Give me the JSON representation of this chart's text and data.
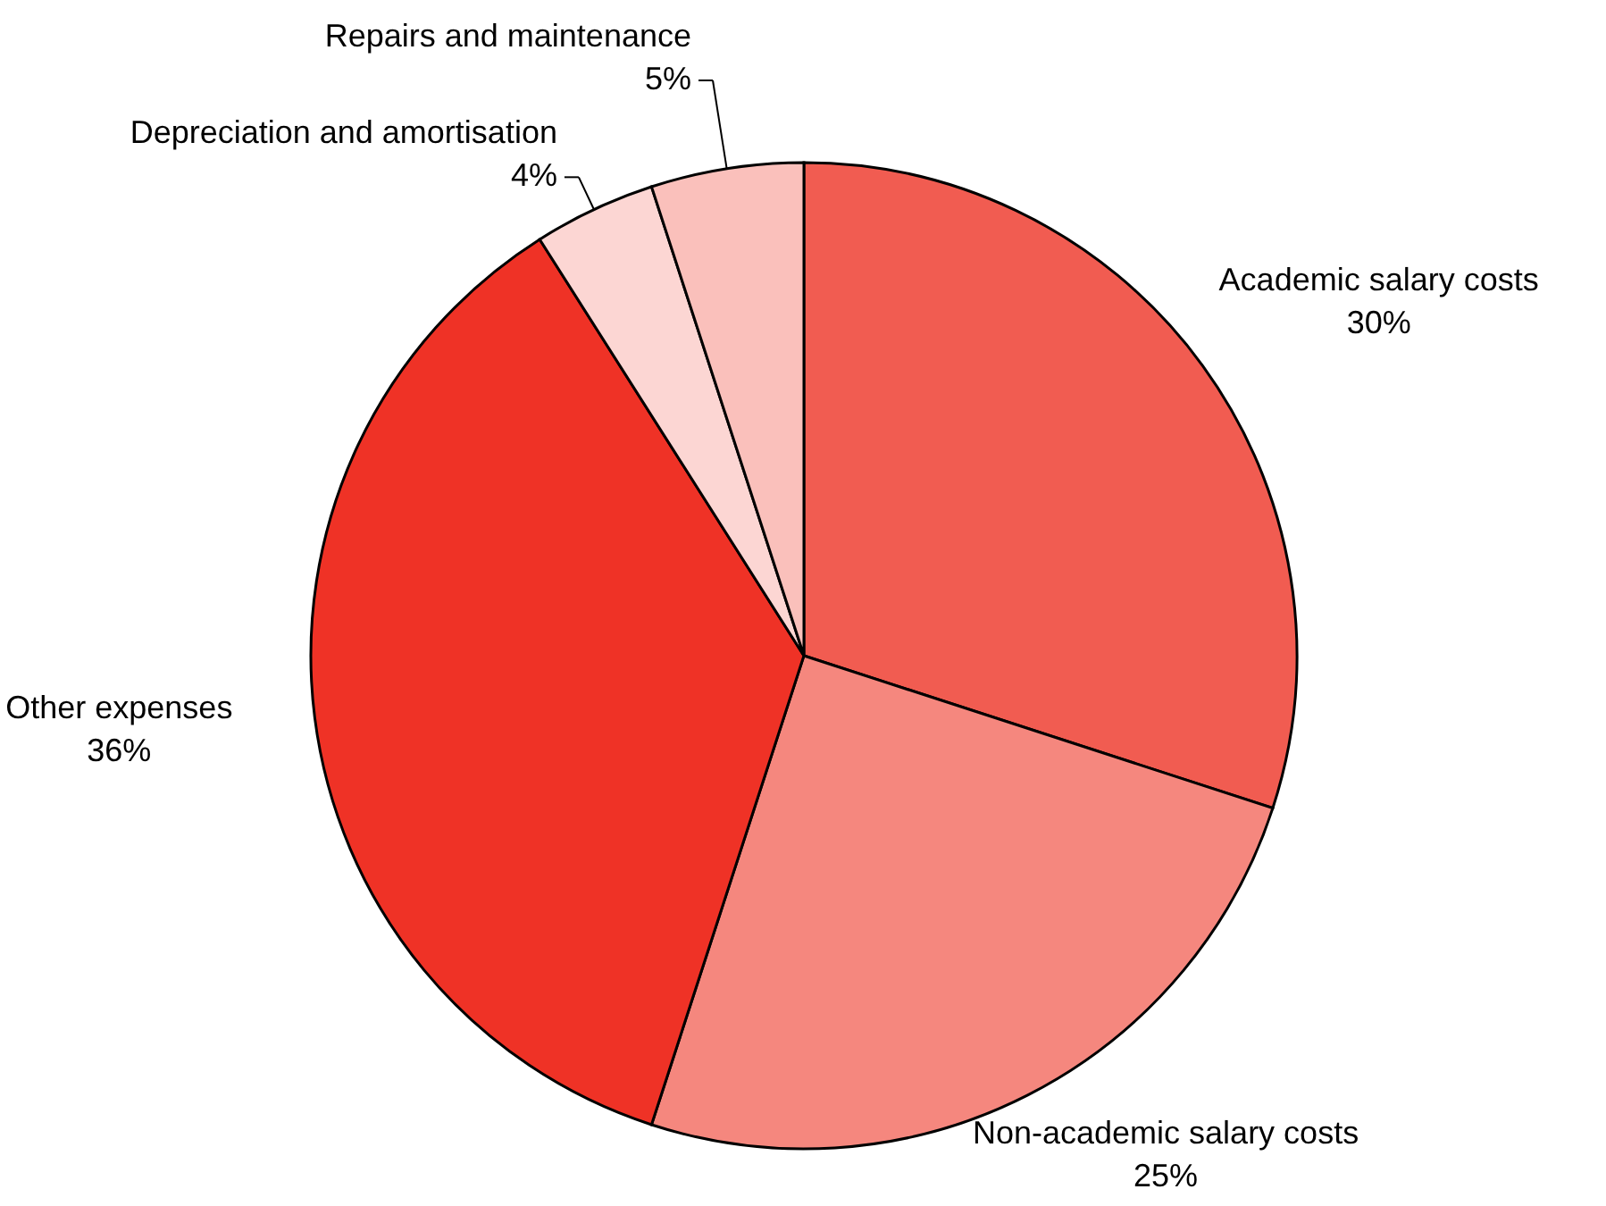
{
  "chart_data": {
    "type": "pie",
    "categories": [
      "Academic salary costs",
      "Non-academic salary costs",
      "Other expenses",
      "Depreciation and amortisation",
      "Repairs and maintenance"
    ],
    "values": [
      30,
      25,
      36,
      4,
      5
    ],
    "value_labels": [
      "30%",
      "25%",
      "36%",
      "4%",
      "5%"
    ],
    "colors": [
      "#f15c51",
      "#f5877e",
      "#ef3226",
      "#fcd6d3",
      "#fac0bb"
    ]
  }
}
